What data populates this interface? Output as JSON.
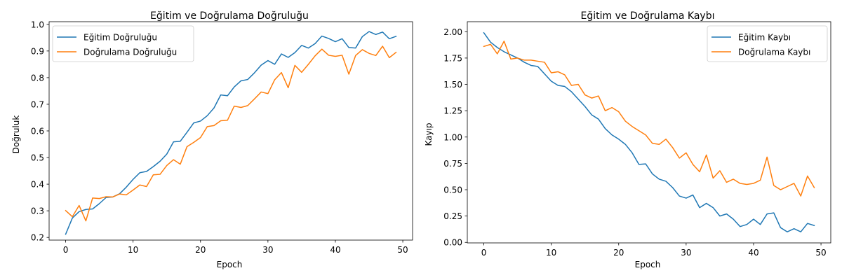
{
  "chart_data": [
    {
      "type": "line",
      "title": "Eğitim ve Doğrulama Doğruluğu",
      "xlabel": "Epoch",
      "ylabel": "Doğruluk",
      "xlim": [
        -2.45,
        51.45
      ],
      "ylim": [
        0.19,
        1.01
      ],
      "xticks": [
        0,
        10,
        20,
        30,
        40,
        50
      ],
      "yticks": [
        0.2,
        0.3,
        0.4,
        0.5,
        0.6,
        0.7,
        0.8,
        0.9,
        1.0
      ],
      "ytick_decimals": 1,
      "legend": "upper-left",
      "grid": false,
      "x": [
        0,
        1,
        2,
        3,
        4,
        5,
        6,
        7,
        8,
        9,
        10,
        11,
        12,
        13,
        14,
        15,
        16,
        17,
        18,
        19,
        20,
        21,
        22,
        23,
        24,
        25,
        26,
        27,
        28,
        29,
        30,
        31,
        32,
        33,
        34,
        35,
        36,
        37,
        38,
        39,
        40,
        41,
        42,
        43,
        44,
        45,
        46,
        47,
        48,
        49
      ],
      "series": [
        {
          "name": "Eğitim Doğruluğu",
          "color": "#1f77b4",
          "values": [
            0.212,
            0.273,
            0.297,
            0.305,
            0.307,
            0.327,
            0.35,
            0.352,
            0.364,
            0.389,
            0.418,
            0.443,
            0.448,
            0.466,
            0.486,
            0.513,
            0.559,
            0.561,
            0.595,
            0.63,
            0.637,
            0.657,
            0.686,
            0.735,
            0.732,
            0.765,
            0.788,
            0.793,
            0.818,
            0.847,
            0.864,
            0.85,
            0.889,
            0.876,
            0.894,
            0.921,
            0.911,
            0.928,
            0.956,
            0.947,
            0.935,
            0.946,
            0.913,
            0.911,
            0.954,
            0.973,
            0.962,
            0.971,
            0.946,
            0.955
          ]
        },
        {
          "name": "Doğrulama Doğruluğu",
          "color": "#ff7f0e",
          "values": [
            0.301,
            0.278,
            0.32,
            0.262,
            0.348,
            0.346,
            0.353,
            0.352,
            0.363,
            0.36,
            0.378,
            0.397,
            0.391,
            0.435,
            0.437,
            0.47,
            0.492,
            0.475,
            0.541,
            0.557,
            0.575,
            0.616,
            0.62,
            0.638,
            0.64,
            0.693,
            0.688,
            0.695,
            0.72,
            0.746,
            0.74,
            0.792,
            0.819,
            0.762,
            0.846,
            0.82,
            0.85,
            0.882,
            0.907,
            0.884,
            0.88,
            0.884,
            0.813,
            0.883,
            0.905,
            0.891,
            0.883,
            0.918,
            0.875,
            0.895
          ]
        }
      ]
    },
    {
      "type": "line",
      "title": "Eğitim ve Doğrulama Kaybı",
      "xlabel": "Epoch",
      "ylabel": "Kayıp",
      "xlim": [
        -2.45,
        51.45
      ],
      "ylim": [
        -0.005,
        2.095
      ],
      "xticks": [
        0,
        10,
        20,
        30,
        40,
        50
      ],
      "yticks": [
        0.0,
        0.25,
        0.5,
        0.75,
        1.0,
        1.25,
        1.5,
        1.75,
        2.0
      ],
      "ytick_decimals": 2,
      "legend": "upper-right",
      "grid": false,
      "x": [
        0,
        1,
        2,
        3,
        4,
        5,
        6,
        7,
        8,
        9,
        10,
        11,
        12,
        13,
        14,
        15,
        16,
        17,
        18,
        19,
        20,
        21,
        22,
        23,
        24,
        25,
        26,
        27,
        28,
        29,
        30,
        31,
        32,
        33,
        34,
        35,
        36,
        37,
        38,
        39,
        40,
        41,
        42,
        43,
        44,
        45,
        46,
        47,
        48,
        49
      ],
      "series": [
        {
          "name": "Eğitim Kaybı",
          "color": "#1f77b4",
          "values": [
            1.99,
            1.9,
            1.85,
            1.81,
            1.78,
            1.75,
            1.71,
            1.68,
            1.67,
            1.6,
            1.53,
            1.49,
            1.48,
            1.43,
            1.36,
            1.29,
            1.21,
            1.17,
            1.08,
            1.02,
            0.98,
            0.93,
            0.85,
            0.74,
            0.745,
            0.65,
            0.6,
            0.58,
            0.52,
            0.44,
            0.42,
            0.45,
            0.33,
            0.37,
            0.33,
            0.25,
            0.27,
            0.22,
            0.15,
            0.17,
            0.22,
            0.17,
            0.27,
            0.28,
            0.14,
            0.1,
            0.13,
            0.1,
            0.18,
            0.16
          ]
        },
        {
          "name": "Doğrulama Kaybı",
          "color": "#ff7f0e",
          "values": [
            1.86,
            1.88,
            1.79,
            1.91,
            1.74,
            1.75,
            1.73,
            1.73,
            1.72,
            1.71,
            1.61,
            1.62,
            1.59,
            1.49,
            1.5,
            1.4,
            1.37,
            1.39,
            1.25,
            1.28,
            1.24,
            1.15,
            1.1,
            1.06,
            1.02,
            0.94,
            0.93,
            0.98,
            0.9,
            0.8,
            0.85,
            0.74,
            0.67,
            0.83,
            0.61,
            0.68,
            0.57,
            0.6,
            0.56,
            0.55,
            0.56,
            0.59,
            0.81,
            0.54,
            0.5,
            0.53,
            0.56,
            0.44,
            0.63,
            0.52
          ]
        }
      ]
    }
  ]
}
